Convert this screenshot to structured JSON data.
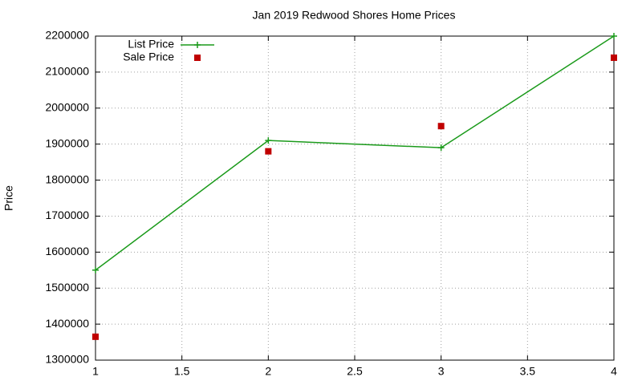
{
  "chart_data": {
    "type": "line",
    "title": "Jan 2019 Redwood Shores Home Prices",
    "y_label": "Price",
    "x": [
      1,
      2,
      3,
      4
    ],
    "series": [
      {
        "name": "List Price",
        "color": "#1a9a1a",
        "style": "linespoints",
        "marker": "plus",
        "values": [
          1550000,
          1910000,
          1890000,
          2200000
        ]
      },
      {
        "name": "Sale Price",
        "color": "#c00000",
        "style": "points",
        "marker": "square",
        "values": [
          1365000,
          1880000,
          1950000,
          2140000
        ]
      }
    ],
    "xlim": [
      1,
      4
    ],
    "xticks": [
      1,
      1.5,
      2,
      2.5,
      3,
      3.5,
      4
    ],
    "ylim": [
      1300000,
      2200000
    ],
    "yticks": [
      1300000,
      1400000,
      1500000,
      1600000,
      1700000,
      1800000,
      1900000,
      2000000,
      2100000,
      2200000
    ],
    "grid": true,
    "legend": "top-left"
  }
}
